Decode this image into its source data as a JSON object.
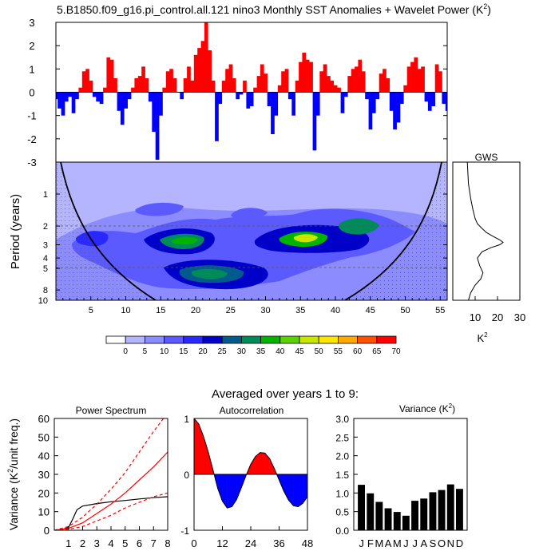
{
  "title": "5.B1850.f09_g16.pi_control.all.121 nino3 Monthly SST Anomalies + Wavelet Power (K",
  "title_sup": "2",
  "title_end": ")",
  "chart_data": [
    {
      "id": "anomaly",
      "type": "area",
      "ylim": [
        -3,
        3
      ],
      "xlim": [
        0,
        56
      ],
      "yticks": [
        "3",
        "2",
        "1",
        "0",
        "-1",
        "-2",
        "-3"
      ],
      "pos_color": "#ff0000",
      "neg_color": "#0000ff",
      "x": [
        0,
        0.5,
        1,
        1.5,
        2,
        2.5,
        3,
        3.5,
        4,
        4.5,
        5,
        5.5,
        6,
        6.5,
        7,
        7.5,
        8,
        8.5,
        9,
        9.5,
        10,
        10.5,
        11,
        11.5,
        12,
        12.5,
        13,
        13.5,
        14,
        14.5,
        15,
        15.5,
        16,
        16.5,
        17,
        17.5,
        18,
        18.5,
        19,
        19.5,
        20,
        20.5,
        21,
        21.5,
        22,
        22.5,
        23,
        23.5,
        24,
        24.5,
        25,
        25.5,
        26,
        26.5,
        27,
        27.5,
        28,
        28.5,
        29,
        29.5,
        30,
        30.5,
        31,
        31.5,
        32,
        32.5,
        33,
        33.5,
        34,
        34.5,
        35,
        35.5,
        36,
        36.5,
        37,
        37.5,
        38,
        38.5,
        39,
        39.5,
        40,
        40.5,
        41,
        41.5,
        42,
        42.5,
        43,
        43.5,
        44,
        44.5,
        45,
        45.5,
        46,
        46.5,
        47,
        47.5,
        48,
        48.5,
        49,
        49.5,
        50,
        50.5,
        51,
        51.5,
        52,
        52.5,
        53,
        53.5,
        54,
        54.5,
        55,
        55.5,
        56
      ],
      "values": [
        -0.3,
        -0.7,
        -1.0,
        -0.4,
        -0.2,
        -0.9,
        -0.3,
        0.2,
        0.9,
        1.0,
        0.5,
        -0.2,
        -0.4,
        -0.5,
        0.2,
        1.5,
        1.4,
        0.6,
        -0.8,
        -1.4,
        -0.7,
        -0.3,
        0.2,
        0.6,
        0.7,
        1.1,
        0.6,
        -0.4,
        -1.7,
        -2.9,
        -1.0,
        0.2,
        0.9,
        1.0,
        0.6,
        0.0,
        -0.3,
        0.6,
        1.1,
        0.5,
        1.6,
        1.9,
        2.2,
        3.0,
        1.8,
        0.5,
        -2.1,
        -0.5,
        0.5,
        1.0,
        1.2,
        0.6,
        -0.3,
        -0.1,
        0.5,
        -0.7,
        -0.6,
        0.2,
        0.7,
        1.2,
        0.8,
        -0.6,
        -1.8,
        -1.0,
        0.3,
        0.9,
        1.0,
        -0.3,
        -1.0,
        0.5,
        1.3,
        1.7,
        1.4,
        1.3,
        -2.5,
        -1.0,
        0.9,
        1.2,
        0.7,
        0.5,
        0.3,
        0.2,
        -0.9,
        -0.2,
        0.7,
        1.0,
        1.1,
        1.4,
        0.9,
        -0.3,
        -1.6,
        -0.9,
        -0.3,
        0.8,
        1.0,
        0.6,
        -0.8,
        -1.6,
        -1.3,
        -0.5,
        0.3,
        1.1,
        1.3,
        1.5,
        1.0,
        1.1,
        -0.4,
        -0.8,
        -0.6,
        1.2,
        0.9,
        -0.5,
        -0.8
      ]
    },
    {
      "id": "wavelet",
      "type": "heatmap",
      "xlim": [
        0,
        56
      ],
      "xticks": [
        5,
        10,
        15,
        20,
        25,
        30,
        35,
        40,
        45,
        50,
        55
      ],
      "ylabel": "Period (years)",
      "yticks": [
        1,
        2,
        3,
        4,
        5,
        8,
        10
      ],
      "ylim": [
        0.5,
        10
      ]
    },
    {
      "id": "gws",
      "type": "line",
      "title": "GWS",
      "xticks": [
        10,
        20,
        30
      ],
      "xlim": [
        0,
        30
      ],
      "xlabel": "K",
      "xlabel_sup": "2",
      "x": [
        6.5,
        7,
        8,
        9,
        10,
        11,
        13,
        15,
        18,
        21,
        22.5,
        21,
        17,
        13,
        11,
        12,
        13.5,
        12.5,
        10,
        8,
        7
      ],
      "y": [
        0.5,
        0.8,
        1.1,
        1.4,
        1.7,
        1.9,
        2.1,
        2.3,
        2.5,
        2.7,
        2.85,
        3.0,
        3.2,
        3.5,
        4.0,
        4.7,
        5.5,
        6.3,
        7.2,
        8.5,
        10
      ]
    },
    {
      "id": "colorbar",
      "type": "table",
      "labels": [
        "0",
        "5",
        "10",
        "15",
        "20",
        "25",
        "30",
        "35",
        "40",
        "45",
        "50",
        "55",
        "60",
        "65",
        "70"
      ],
      "colors": [
        "#ffffff",
        "#b4b4ff",
        "#8c8cff",
        "#5a5aff",
        "#2828ff",
        "#0000c8",
        "#005a8c",
        "#008c5a",
        "#00b400",
        "#5ad200",
        "#c8e600",
        "#ffe600",
        "#ffaa00",
        "#ff5000",
        "#ff0000"
      ]
    },
    {
      "id": "spectrum",
      "type": "line",
      "title": "Power Spectrum",
      "xlim": [
        0,
        8
      ],
      "ylim": [
        0,
        60
      ],
      "xticks": [
        1,
        2,
        3,
        4,
        5,
        6,
        7,
        8
      ],
      "yticks": [
        0,
        10,
        20,
        30,
        40,
        50,
        60
      ],
      "ylabel": "Variance (K",
      "ylabel_sup": "2",
      "ylabel_end": "/unit freq.)",
      "series": [
        {
          "color": "#000000",
          "dash": "",
          "x": [
            0,
            0.5,
            1,
            1.3,
            1.6,
            2,
            3,
            4,
            5,
            6,
            7,
            8
          ],
          "values": [
            0,
            0.3,
            1.5,
            6,
            11,
            13,
            14.3,
            15.3,
            16,
            16.8,
            17.5,
            18
          ]
        },
        {
          "color": "#ff0000",
          "dash": "",
          "x": [
            0,
            1,
            2,
            3,
            4,
            5,
            6,
            7,
            8
          ],
          "values": [
            0,
            1,
            4,
            9,
            14,
            20,
            27,
            34,
            42
          ]
        },
        {
          "color": "#ff0000",
          "dash": "4 3",
          "x": [
            0,
            1,
            2,
            3,
            4,
            5,
            6,
            7,
            8
          ],
          "values": [
            0,
            2,
            7,
            14,
            22,
            31,
            42,
            53,
            63
          ]
        },
        {
          "color": "#ff0000",
          "dash": "4 3",
          "x": [
            0,
            1,
            2,
            3,
            4,
            5,
            6,
            7,
            8
          ],
          "values": [
            0,
            0.5,
            2,
            5,
            8,
            12,
            15,
            18,
            20
          ]
        }
      ]
    },
    {
      "id": "autocorr",
      "type": "area",
      "title": "Autocorrelation",
      "xlim": [
        0,
        48
      ],
      "ylim": [
        -1,
        1
      ],
      "xticks": [
        0,
        12,
        24,
        36,
        48
      ],
      "yticks": [
        -1,
        0,
        1
      ],
      "x": [
        0,
        2,
        4,
        6,
        8,
        10,
        12,
        14,
        16,
        18,
        20,
        22,
        24,
        26,
        28,
        30,
        32,
        34,
        36,
        38,
        40,
        42,
        44,
        46,
        48
      ],
      "values": [
        1.0,
        0.9,
        0.68,
        0.4,
        0.08,
        -0.25,
        -0.48,
        -0.6,
        -0.58,
        -0.45,
        -0.24,
        -0.02,
        0.18,
        0.32,
        0.39,
        0.38,
        0.28,
        0.1,
        -0.1,
        -0.3,
        -0.46,
        -0.56,
        -0.58,
        -0.52,
        -0.4
      ]
    },
    {
      "id": "variance",
      "type": "bar",
      "title": "Variance (K",
      "title_sup": "2",
      "title_end": ")",
      "ylim": [
        0,
        3
      ],
      "yticks": [
        "0.0",
        "0.5",
        "1.0",
        "1.5",
        "2.0",
        "2.5",
        "3.0"
      ],
      "categories": [
        "J",
        "F",
        "M",
        "A",
        "M",
        "J",
        "J",
        "A",
        "S",
        "O",
        "N",
        "D"
      ],
      "values": [
        1.22,
        0.99,
        0.76,
        0.59,
        0.49,
        0.39,
        0.79,
        0.85,
        1.02,
        1.08,
        1.23,
        1.11
      ]
    }
  ],
  "averaged_label": "Averaged over years 1 to 9:"
}
